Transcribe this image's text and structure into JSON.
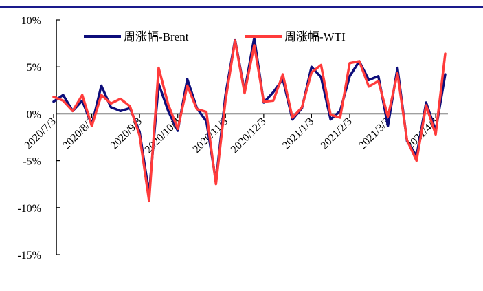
{
  "colors": {
    "top_rule": "#1a1a8c",
    "brent": "#0d0d7a",
    "wti": "#ff3b3b",
    "axis": "#000000"
  },
  "chart_data": {
    "type": "line",
    "title": "",
    "xlabel": "",
    "ylabel": "",
    "ylim": [
      -15,
      10
    ],
    "y_ticks": [
      10,
      5,
      0,
      -5,
      -10,
      -15
    ],
    "y_tick_labels": [
      "10%",
      "5%",
      "0%",
      "-5%",
      "-10%",
      "-15%"
    ],
    "x_tick_labels": [
      "2020/7/3",
      "2020/8/3",
      "2020/9/3",
      "2020/10/3",
      "2020/11/3",
      "2020/12/3",
      "2021/1/3",
      "2021/2/3",
      "2021/3/3",
      "2021/4/3"
    ],
    "x_tick_index": [
      0,
      4,
      9,
      13,
      18,
      22,
      27,
      31,
      35,
      40
    ],
    "legend": "top",
    "grid": false,
    "series": [
      {
        "name": "周涨幅-Brent",
        "values": [
          1.3,
          2.0,
          0.3,
          1.4,
          -1.2,
          3.0,
          0.7,
          0.3,
          0.6,
          -1.9,
          -8.5,
          3.2,
          0.3,
          -1.8,
          3.7,
          0.6,
          -0.8,
          -7.2,
          2.0,
          7.9,
          2.4,
          8.1,
          1.2,
          2.3,
          3.7,
          -0.6,
          0.6,
          5.0,
          3.9,
          -0.6,
          0.3,
          4.0,
          5.6,
          3.6,
          4.0,
          -1.3,
          4.9,
          -2.9,
          -4.5,
          1.2,
          -1.8,
          4.2
        ]
      },
      {
        "name": "周涨幅-WTI",
        "values": [
          1.8,
          1.4,
          0.3,
          2.0,
          -1.3,
          2.0,
          1.1,
          1.6,
          0.8,
          -2.3,
          -9.3,
          4.9,
          1.0,
          -1.6,
          3.0,
          0.5,
          0.2,
          -7.5,
          1.4,
          7.8,
          2.2,
          7.3,
          1.3,
          1.4,
          4.2,
          -0.4,
          0.7,
          4.4,
          5.2,
          -0.1,
          -0.4,
          5.4,
          5.6,
          2.9,
          3.5,
          -0.3,
          4.3,
          -2.8,
          -5.0,
          0.9,
          -2.2,
          6.4
        ]
      }
    ]
  }
}
